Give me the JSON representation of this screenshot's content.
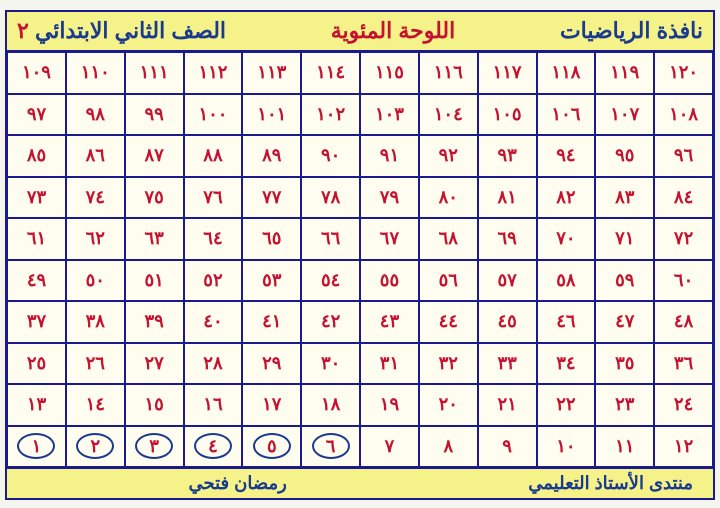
{
  "header": {
    "title_right": "نافذة الرياضيات",
    "title_mid": "اللوحة المئوية",
    "title_left_text": "الصف الثاني الابتدائي",
    "title_left_num": "٢"
  },
  "grid": {
    "rows": [
      [
        "١٢٠",
        "١١٩",
        "١١٨",
        "١١٧",
        "١١٦",
        "١١٥",
        "١١٤",
        "١١٣",
        "١١٢",
        "١١١",
        "١١٠",
        "١٠٩"
      ],
      [
        "١٠٨",
        "١٠٧",
        "١٠٦",
        "١٠٥",
        "١٠٤",
        "١٠٣",
        "١٠٢",
        "١٠١",
        "١٠٠",
        "٩٩",
        "٩٨",
        "٩٧"
      ],
      [
        "٩٦",
        "٩٥",
        "٩٤",
        "٩٣",
        "٩٢",
        "٩١",
        "٩٠",
        "٨٩",
        "٨٨",
        "٨٧",
        "٨٦",
        "٨٥"
      ],
      [
        "٨٤",
        "٨٣",
        "٨٢",
        "٨١",
        "٨٠",
        "٧٩",
        "٧٨",
        "٧٧",
        "٧٦",
        "٧٥",
        "٧٤",
        "٧٣"
      ],
      [
        "٧٢",
        "٧١",
        "٧٠",
        "٦٩",
        "٦٨",
        "٦٧",
        "٦٦",
        "٦٥",
        "٦٤",
        "٦٣",
        "٦٢",
        "٦١"
      ],
      [
        "٦٠",
        "٥٩",
        "٥٨",
        "٥٧",
        "٥٦",
        "٥٥",
        "٥٤",
        "٥٣",
        "٥٢",
        "٥١",
        "٥٠",
        "٤٩"
      ],
      [
        "٤٨",
        "٤٧",
        "٤٦",
        "٤٥",
        "٤٤",
        "٤٣",
        "٤٢",
        "٤١",
        "٤٠",
        "٣٩",
        "٣٨",
        "٣٧"
      ],
      [
        "٣٦",
        "٣٥",
        "٣٤",
        "٣٣",
        "٣٢",
        "٣١",
        "٣٠",
        "٢٩",
        "٢٨",
        "٢٧",
        "٢٦",
        "٢٥"
      ],
      [
        "٢٤",
        "٢٣",
        "٢٢",
        "٢١",
        "٢٠",
        "١٩",
        "١٨",
        "١٧",
        "١٦",
        "١٥",
        "١٤",
        "١٣"
      ],
      [
        "١٢",
        "١١",
        "١٠",
        "٩",
        "٨",
        "٧",
        "٦",
        "٥",
        "٤",
        "٣",
        "٢",
        "١"
      ]
    ],
    "circled_cells": [
      [
        9,
        6
      ],
      [
        9,
        7
      ],
      [
        9,
        8
      ],
      [
        9,
        9
      ],
      [
        9,
        10
      ],
      [
        9,
        11
      ]
    ]
  },
  "footer": {
    "right": "منتدى الأستاذ التعليمي",
    "center": "رمضان فتحي"
  },
  "colors": {
    "bg_yellow": "#f5f28a",
    "border_blue": "#1a1a8e",
    "text_blue": "#1a3a8e",
    "text_red": "#c41230",
    "cell_bg": "#fffcf0"
  }
}
